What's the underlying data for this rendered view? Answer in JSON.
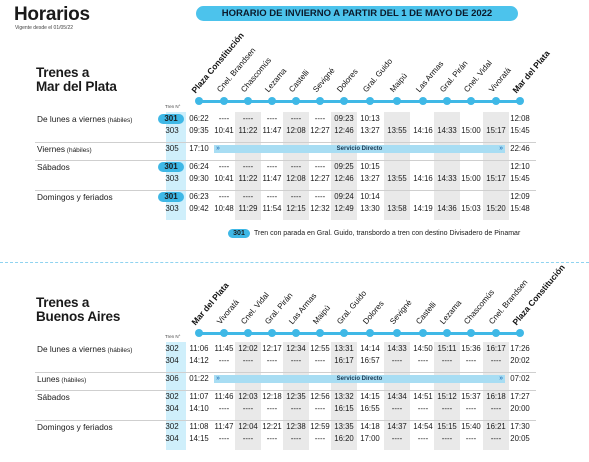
{
  "header": {
    "title": "Horarios",
    "subtitle": "Vigente desde el 01/05/22",
    "season": "HORARIO DE INVIERNO A PARTIR DEL 1 DE MAYO DE 2022"
  },
  "tren_n_label": "Tren N°",
  "direct_label": "Servicio Directo",
  "note": {
    "pill": "301",
    "text": "Tren con parada en Gral. Guido, transbordo a tren con destino Divisadero de Pinamar"
  },
  "colors": {
    "accent": "#3fb8e6",
    "pill_bg": "#4cc3ec",
    "shade": "#e9e9e9",
    "direct_bg": "#a8ddf3"
  },
  "section1": {
    "title_line1": "Trenes a",
    "title_line2": "Mar del Plata",
    "stations": [
      "Plaza Constitución",
      "Cnel. Brandsen",
      "Chascomús",
      "Lezama",
      "Castelli",
      "Sevigné",
      "Dolores",
      "Gral. Guido",
      "Maipú",
      "Las Armas",
      "Gral. Pirán",
      "Cnel. Vidal",
      "Vivoratá",
      "Mar del Plata"
    ],
    "groups": [
      {
        "label": "De lunes a viernes",
        "qual": "(hábiles)",
        "rows": [
          {
            "n": "301",
            "pill": true,
            "t": [
              "06:22",
              "----",
              "----",
              "----",
              "----",
              "----",
              "09:23",
              "10:13",
              "",
              "",
              "",
              "",
              "",
              "12:08"
            ]
          },
          {
            "n": "303",
            "pill": false,
            "t": [
              "09:35",
              "10:41",
              "11:22",
              "11:47",
              "12:08",
              "12:27",
              "12:46",
              "13:27",
              "13:55",
              "14:16",
              "14:33",
              "15:00",
              "15:17",
              "15:45"
            ]
          }
        ]
      },
      {
        "label": "Viernes",
        "qual": "(hábiles)",
        "direct": true,
        "rows": [
          {
            "n": "305",
            "pill": false,
            "t": [
              "17:10",
              "",
              "",
              "",
              "",
              "",
              "",
              "",
              "",
              "",
              "",
              "",
              "",
              "22:46"
            ]
          }
        ]
      },
      {
        "label": "Sábados",
        "qual": "",
        "rows": [
          {
            "n": "301",
            "pill": true,
            "t": [
              "06:24",
              "----",
              "----",
              "----",
              "----",
              "----",
              "09:25",
              "10:15",
              "",
              "",
              "",
              "",
              "",
              "12:10"
            ]
          },
          {
            "n": "303",
            "pill": false,
            "t": [
              "09:30",
              "10:41",
              "11:22",
              "11:47",
              "12:08",
              "12:27",
              "12:46",
              "13:27",
              "13:55",
              "14:16",
              "14:33",
              "15:00",
              "15:17",
              "15:45"
            ]
          }
        ]
      },
      {
        "label": "Domingos y feriados",
        "qual": "",
        "rows": [
          {
            "n": "301",
            "pill": true,
            "t": [
              "06:23",
              "----",
              "----",
              "----",
              "----",
              "----",
              "09:24",
              "10:14",
              "",
              "",
              "",
              "",
              "",
              "12:09"
            ]
          },
          {
            "n": "303",
            "pill": false,
            "t": [
              "09:42",
              "10:48",
              "11:29",
              "11:54",
              "12:15",
              "12:32",
              "12:49",
              "13:30",
              "13:58",
              "14:19",
              "14:36",
              "15:03",
              "15:20",
              "15:48"
            ]
          }
        ]
      }
    ]
  },
  "section2": {
    "title_line1": "Trenes a",
    "title_line2": "Buenos Aires",
    "stations": [
      "Mar del Plata",
      "Vivoratá",
      "Cnel. Vidal",
      "Gral. Pirán",
      "Las Armas",
      "Maipú",
      "Gral. Guido",
      "Dolores",
      "Sevigné",
      "Castelli",
      "Lezama",
      "Chascomús",
      "Cnel. Brandsen",
      "Plaza Constitución"
    ],
    "groups": [
      {
        "label": "De lunes a viernes",
        "qual": "(hábiles)",
        "rows": [
          {
            "n": "302",
            "pill": false,
            "t": [
              "11:06",
              "11:45",
              "12:02",
              "12:17",
              "12:34",
              "12:55",
              "13:31",
              "14:14",
              "14:33",
              "14:50",
              "15:11",
              "15:36",
              "16:17",
              "17:26"
            ]
          },
          {
            "n": "304",
            "pill": false,
            "t": [
              "14:12",
              "----",
              "----",
              "----",
              "----",
              "----",
              "16:17",
              "16:57",
              "----",
              "----",
              "----",
              "----",
              "----",
              "20:02"
            ]
          }
        ]
      },
      {
        "label": "Lunes",
        "qual": "(hábiles)",
        "direct": true,
        "rows": [
          {
            "n": "306",
            "pill": false,
            "t": [
              "01:22",
              "",
              "",
              "",
              "",
              "",
              "",
              "",
              "",
              "",
              "",
              "",
              "",
              "07:02"
            ]
          }
        ]
      },
      {
        "label": "Sábados",
        "qual": "",
        "rows": [
          {
            "n": "302",
            "pill": false,
            "t": [
              "11:07",
              "11:46",
              "12:03",
              "12:18",
              "12:35",
              "12:56",
              "13:32",
              "14:15",
              "14:34",
              "14:51",
              "15:12",
              "15:37",
              "16:18",
              "17:27"
            ]
          },
          {
            "n": "304",
            "pill": false,
            "t": [
              "14:10",
              "----",
              "----",
              "----",
              "----",
              "----",
              "16:15",
              "16:55",
              "----",
              "----",
              "----",
              "----",
              "----",
              "20:00"
            ]
          }
        ]
      },
      {
        "label": "Domingos y feriados",
        "qual": "",
        "rows": [
          {
            "n": "302",
            "pill": false,
            "t": [
              "11:08",
              "11:47",
              "12:04",
              "12:21",
              "12:38",
              "12:59",
              "13:35",
              "14:18",
              "14:37",
              "14:54",
              "15:15",
              "15:40",
              "16:21",
              "17:30"
            ]
          },
          {
            "n": "304",
            "pill": false,
            "t": [
              "14:15",
              "----",
              "----",
              "----",
              "----",
              "----",
              "16:20",
              "17:00",
              "----",
              "----",
              "----",
              "----",
              "----",
              "20:05"
            ]
          }
        ]
      }
    ]
  }
}
